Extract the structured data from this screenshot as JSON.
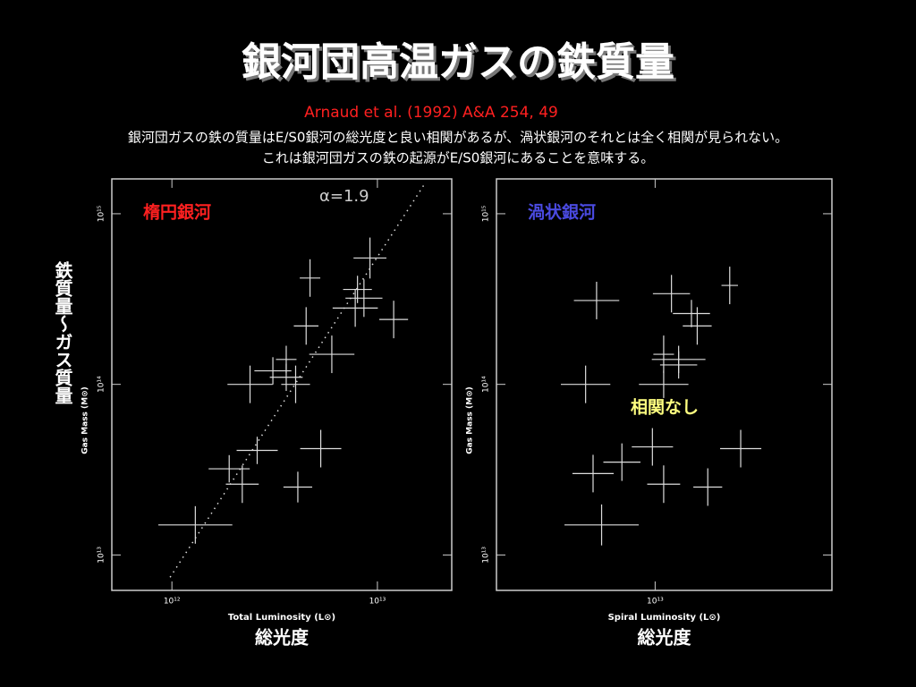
{
  "slide": {
    "title": "銀河団高温ガスの鉄質量",
    "citation": "Arnaud et al. (1992) A&A 254, 49",
    "description": [
      "銀河団ガスの鉄の質量はE/S0銀河の総光度と良い相関があるが、渦状銀河のそれとは全く相関が見られない。",
      "これは銀河団ガスの鉄の起源がE/S0銀河にあることを意味する。"
    ],
    "y_side_label": "鉄質量～ガス質量"
  },
  "chart_data": [
    {
      "type": "scatter",
      "panel_label": "楕円銀河",
      "panel_label_color": "#ff2020",
      "xlabel": "Total Luminosity (L⊙)",
      "xlabel_jp": "総光度",
      "ylabel": "Gas Mass (M⊙)",
      "log_scale": true,
      "xlim": [
        510000000000.0,
        23000000000000.0
      ],
      "ylim": [
        6200000000000.0,
        1600000000000000.0
      ],
      "xticks": [
        {
          "value": 1000000000000.0,
          "label": "10¹²"
        },
        {
          "value": 10000000000000.0,
          "label": "10¹³"
        }
      ],
      "yticks": [
        {
          "value": 10000000000000.0,
          "label": "10¹³"
        },
        {
          "value": 100000000000000.0,
          "label": "10¹⁴"
        },
        {
          "value": 1000000000000000.0,
          "label": "10¹⁵"
        }
      ],
      "series": [
        {
          "color": "#dddddd",
          "x": [
            1300000000000.0,
            1900000000000.0,
            2200000000000.0,
            2600000000000.0,
            4100000000000.0,
            5300000000000.0,
            2400000000000.0,
            3100000000000.0,
            3600000000000.0,
            4000000000000.0,
            6000000000000.0,
            4500000000000.0,
            4700000000000.0,
            7800000000000.0,
            8600000000000.0,
            12000000000000.0,
            9200000000000.0,
            8000000000000.0,
            3600000000000.0
          ],
          "values": [
            15000000000000.0,
            32000000000000.0,
            26000000000000.0,
            41000000000000.0,
            25000000000000.0,
            42000000000000.0,
            100000000000000.0,
            120000000000000.0,
            110000000000000.0,
            100000000000000.0,
            150000000000000.0,
            220000000000000.0,
            420000000000000.0,
            280000000000000.0,
            320000000000000.0,
            240000000000000.0,
            550000000000000.0,
            360000000000000.0,
            140000000000000.0
          ],
          "xerr_dex": [
            0.18,
            0.1,
            0.08,
            0.1,
            0.07,
            0.1,
            0.11,
            0.09,
            0.08,
            0.07,
            0.11,
            0.06,
            0.05,
            0.11,
            0.09,
            0.07,
            0.08,
            0.07,
            0.05
          ],
          "yerr_dex": [
            0.11,
            0.08,
            0.11,
            0.08,
            0.09,
            0.11,
            0.11,
            0.08,
            0.08,
            0.11,
            0.11,
            0.11,
            0.11,
            0.11,
            0.11,
            0.11,
            0.12,
            0.08,
            0.08
          ]
        }
      ],
      "fit": {
        "label": "α=1.9",
        "x": [
          980000000000.0,
          17000000000000.0
        ],
        "values": [
          7400000000000.0,
          1500000000000000.0
        ]
      }
    },
    {
      "type": "scatter",
      "panel_label": "渦状銀河",
      "panel_label_color": "#4a4ae0",
      "note": "相関なし",
      "note_color": "#ffff80",
      "xlabel": "Spiral Luminosity (L⊙)",
      "xlabel_jp": "総光度",
      "ylabel": "Gas Mass (M⊙)",
      "log_scale": true,
      "xlim": [
        1700000000000.0,
        72000000000000.0
      ],
      "ylim": [
        6200000000000.0,
        1600000000000000.0
      ],
      "xticks": [
        {
          "value": 10000000000000.0,
          "label": "10¹³"
        }
      ],
      "yticks": [
        {
          "value": 10000000000000.0,
          "label": "10¹³"
        },
        {
          "value": 100000000000000.0,
          "label": "10¹⁴"
        },
        {
          "value": 1000000000000000.0,
          "label": "10¹⁵"
        }
      ],
      "series": [
        {
          "color": "#dddddd",
          "x": [
            5200000000000.0,
            12000000000000.0,
            15000000000000.0,
            16000000000000.0,
            23000000000000.0,
            11000000000000.0,
            13000000000000.0,
            13000000000000.0,
            11000000000000.0,
            4600000000000.0,
            5000000000000.0,
            6900000000000.0,
            9700000000000.0,
            11000000000000.0,
            18000000000000.0,
            26000000000000.0,
            5500000000000.0
          ],
          "values": [
            310000000000000.0,
            340000000000000.0,
            260000000000000.0,
            220000000000000.0,
            380000000000000.0,
            150000000000000.0,
            140000000000000.0,
            130000000000000.0,
            100000000000000.0,
            100000000000000.0,
            30000000000000.0,
            35000000000000.0,
            43000000000000.0,
            26000000000000.0,
            25000000000000.0,
            42000000000000.0,
            15000000000000.0
          ],
          "xerr_dex": [
            0.11,
            0.09,
            0.09,
            0.07,
            0.04,
            0.05,
            0.13,
            0.09,
            0.12,
            0.12,
            0.1,
            0.09,
            0.1,
            0.08,
            0.07,
            0.1,
            0.18
          ],
          "yerr_dex": [
            0.11,
            0.11,
            0.08,
            0.11,
            0.11,
            0.11,
            0.08,
            0.08,
            0.08,
            0.11,
            0.11,
            0.11,
            0.11,
            0.11,
            0.11,
            0.11,
            0.12
          ]
        }
      ]
    }
  ]
}
